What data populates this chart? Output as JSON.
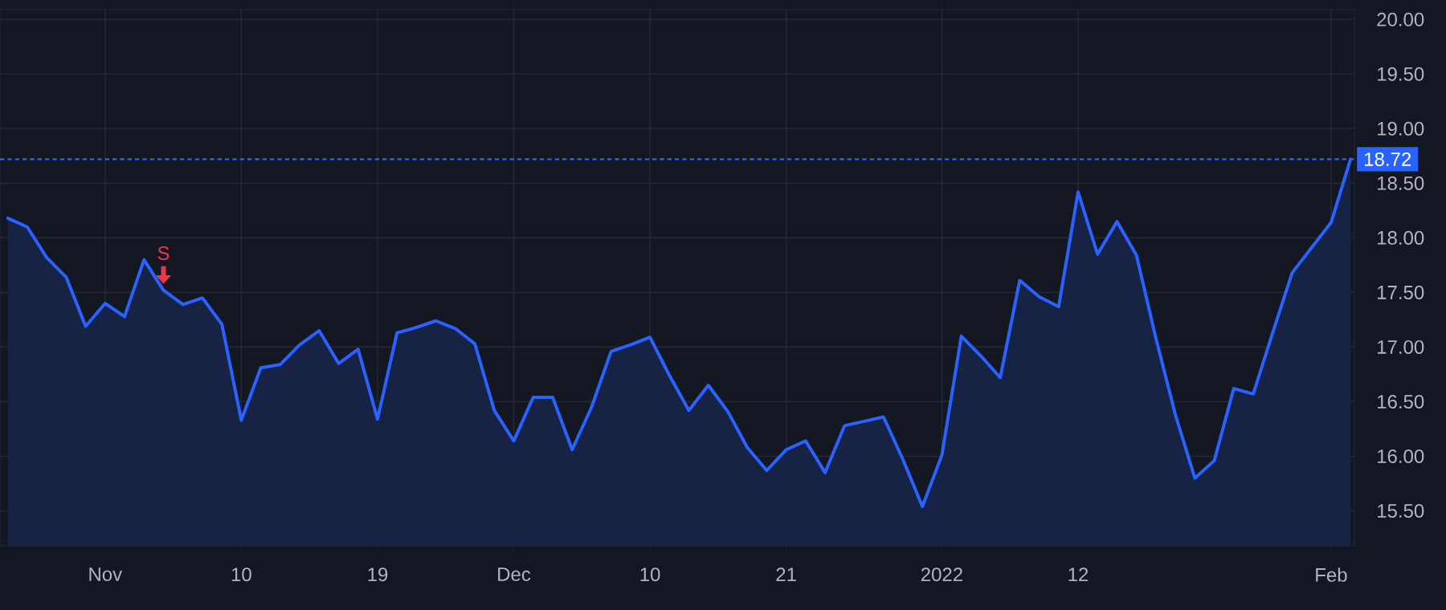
{
  "chart_data": {
    "type": "area",
    "color": "#2962ff",
    "categories": [
      null,
      null,
      null,
      null,
      null,
      "Nov",
      null,
      null,
      null,
      null,
      null,
      null,
      "10",
      null,
      null,
      null,
      null,
      null,
      null,
      "19",
      null,
      null,
      null,
      null,
      null,
      null,
      "Dec",
      null,
      null,
      null,
      null,
      null,
      null,
      "10",
      null,
      null,
      null,
      null,
      null,
      null,
      "21",
      null,
      null,
      null,
      null,
      null,
      null,
      null,
      "2022",
      null,
      null,
      null,
      null,
      null,
      null,
      "12",
      null,
      null,
      null,
      null,
      null,
      null,
      null,
      null,
      null,
      null,
      null,
      null,
      "Feb",
      null
    ],
    "values": [
      18.18,
      18.1,
      17.82,
      17.64,
      17.19,
      17.4,
      17.28,
      17.8,
      17.52,
      17.39,
      17.45,
      17.21,
      16.33,
      16.81,
      16.84,
      17.02,
      17.15,
      16.85,
      16.98,
      16.34,
      17.13,
      17.18,
      17.24,
      17.17,
      17.03,
      16.42,
      16.14,
      16.54,
      16.54,
      16.06,
      16.45,
      16.96,
      17.02,
      17.09,
      16.74,
      16.42,
      16.65,
      16.41,
      16.08,
      15.87,
      16.06,
      16.14,
      15.85,
      16.28,
      16.32,
      16.36,
      15.97,
      15.54,
      16.01,
      17.1,
      16.92,
      16.72,
      17.61,
      17.46,
      17.37,
      18.42,
      17.85,
      18.15,
      17.84,
      17.08,
      16.38,
      15.8,
      15.96,
      16.62,
      16.57,
      17.13,
      17.68,
      17.91,
      18.14,
      18.72
    ],
    "ylim": [
      15.18,
      20.09
    ],
    "yticks": [
      {
        "value": 15.5,
        "label": "15.50"
      },
      {
        "value": 16,
        "label": "16.00"
      },
      {
        "value": 16.5,
        "label": "16.50"
      },
      {
        "value": 17,
        "label": "17.00"
      },
      {
        "value": 17.5,
        "label": "17.50"
      },
      {
        "value": 18,
        "label": "18.00"
      },
      {
        "value": 18.5,
        "label": "18.50"
      },
      {
        "value": 19,
        "label": "19.00"
      },
      {
        "value": 19.5,
        "label": "19.50"
      },
      {
        "value": 20,
        "label": "20.00"
      }
    ],
    "grid": true,
    "ref_lines": [
      {
        "axis": "y",
        "value": 18.72,
        "label": "18.72",
        "color": "#2962ff",
        "line_style": "dashed"
      }
    ],
    "annotations": [
      {
        "text": "S",
        "y": 17.52
      }
    ]
  }
}
